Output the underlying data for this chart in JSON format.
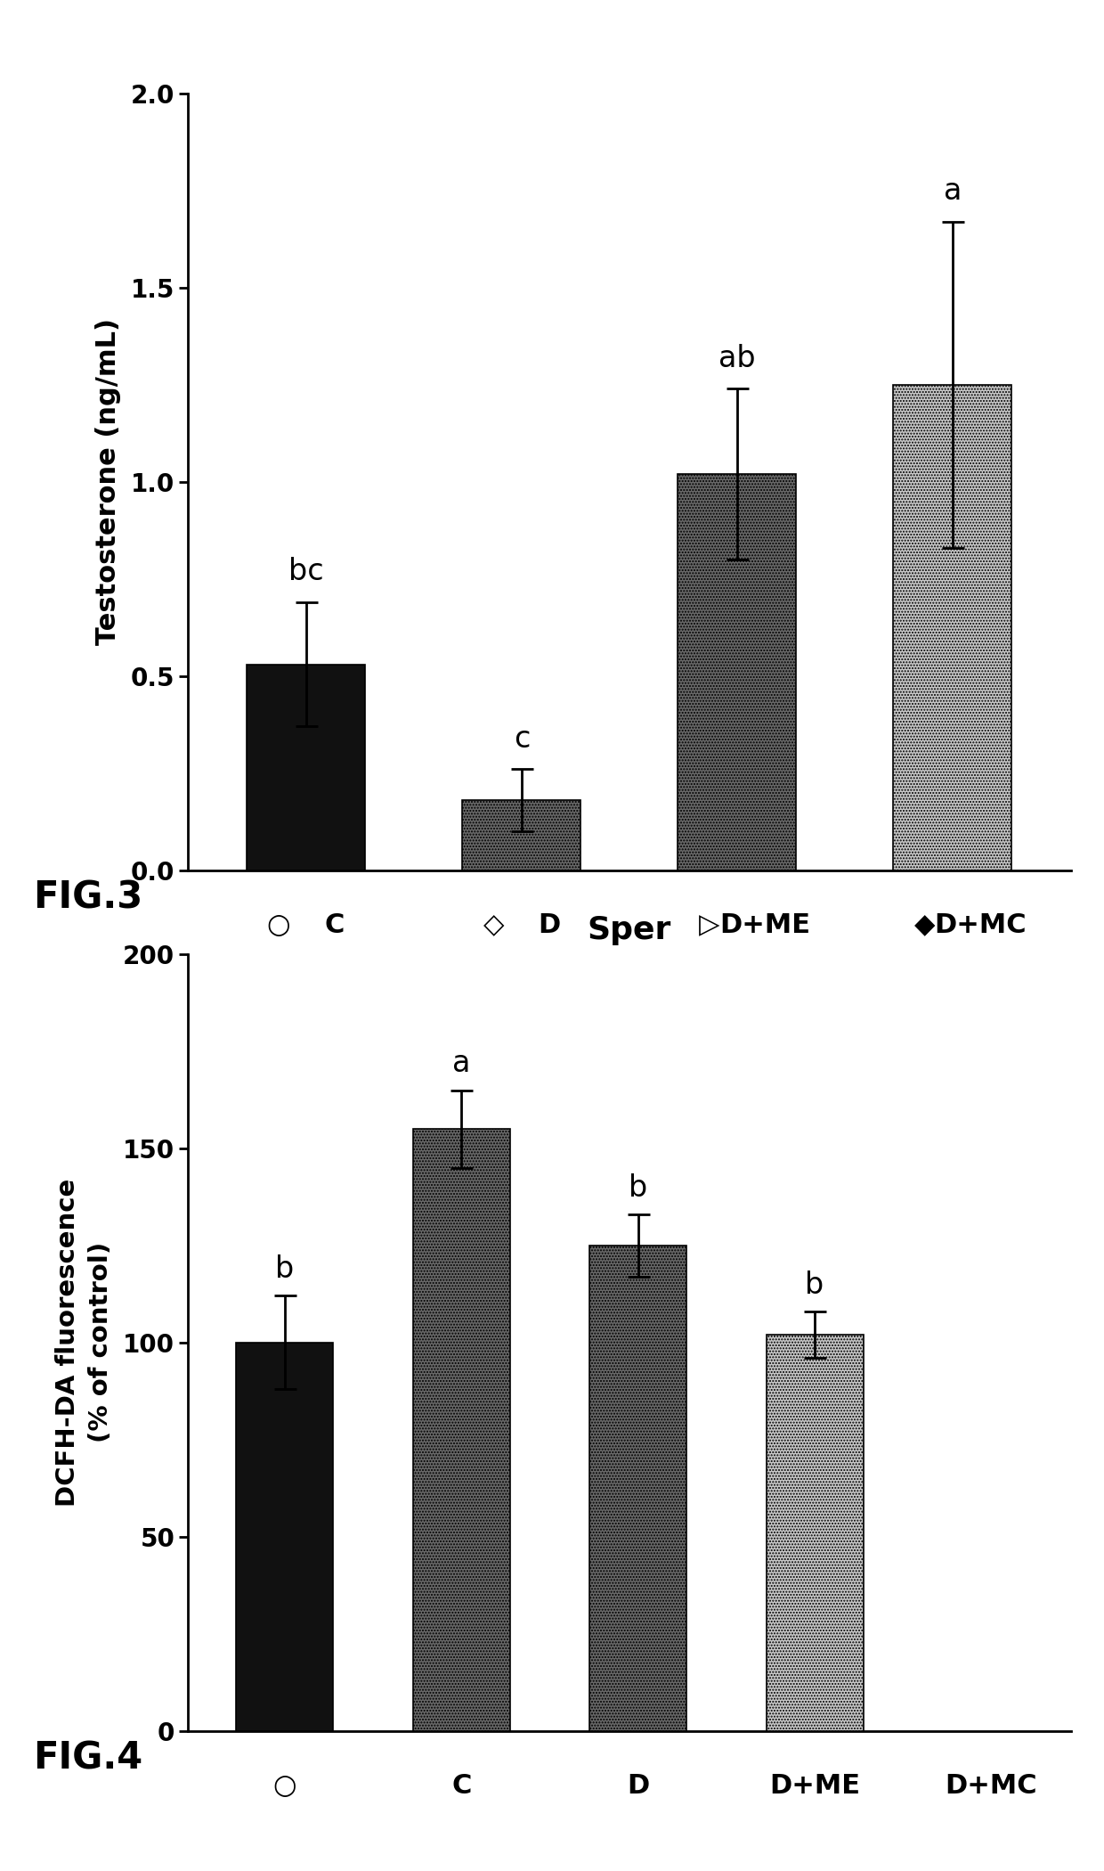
{
  "fig3": {
    "ylabel": "Testosterone (ng/mL)",
    "ylim": [
      0,
      2.0
    ],
    "yticks": [
      0.0,
      0.5,
      1.0,
      1.5,
      2.0
    ],
    "values": [
      0.53,
      0.18,
      1.02,
      1.25
    ],
    "errors": [
      0.16,
      0.08,
      0.22,
      0.42
    ],
    "colors": [
      "#111111",
      "#686868",
      "#686868",
      "#c8c8c8"
    ],
    "hatches": [
      null,
      ".....",
      ".....",
      "....."
    ],
    "letter_labels": [
      "bc",
      "c",
      "ab",
      "a"
    ],
    "x_symbol_label_pairs": [
      [
        "○",
        "C"
      ],
      [
        "◇",
        "D"
      ],
      [
        "▷",
        "D+ME"
      ],
      [
        "◆",
        "D+MC"
      ]
    ]
  },
  "fig4": {
    "title": "Sper",
    "ylabel": "DCFH-DA fluorescence\n(% of control)",
    "ylim": [
      0,
      200
    ],
    "yticks": [
      0,
      50,
      100,
      150,
      200
    ],
    "values": [
      100,
      155,
      125,
      102
    ],
    "errors": [
      12,
      10,
      8,
      6
    ],
    "colors": [
      "#111111",
      "#686868",
      "#686868",
      "#c8c8c8"
    ],
    "hatches": [
      null,
      ".....",
      ".....",
      "....."
    ],
    "letter_labels": [
      "b",
      "a",
      "b",
      "b"
    ],
    "x_labels": [
      "○",
      "C",
      "D",
      "D+ME",
      "D+MC"
    ]
  },
  "fig3_label": "FIG.3",
  "fig4_label": "FIG.4",
  "bar_width": 0.55,
  "font_size_ylabel": 22,
  "font_size_tick": 20,
  "font_size_letter": 24,
  "font_size_title": 26,
  "font_size_xlabel": 22,
  "font_size_figlabel": 30
}
